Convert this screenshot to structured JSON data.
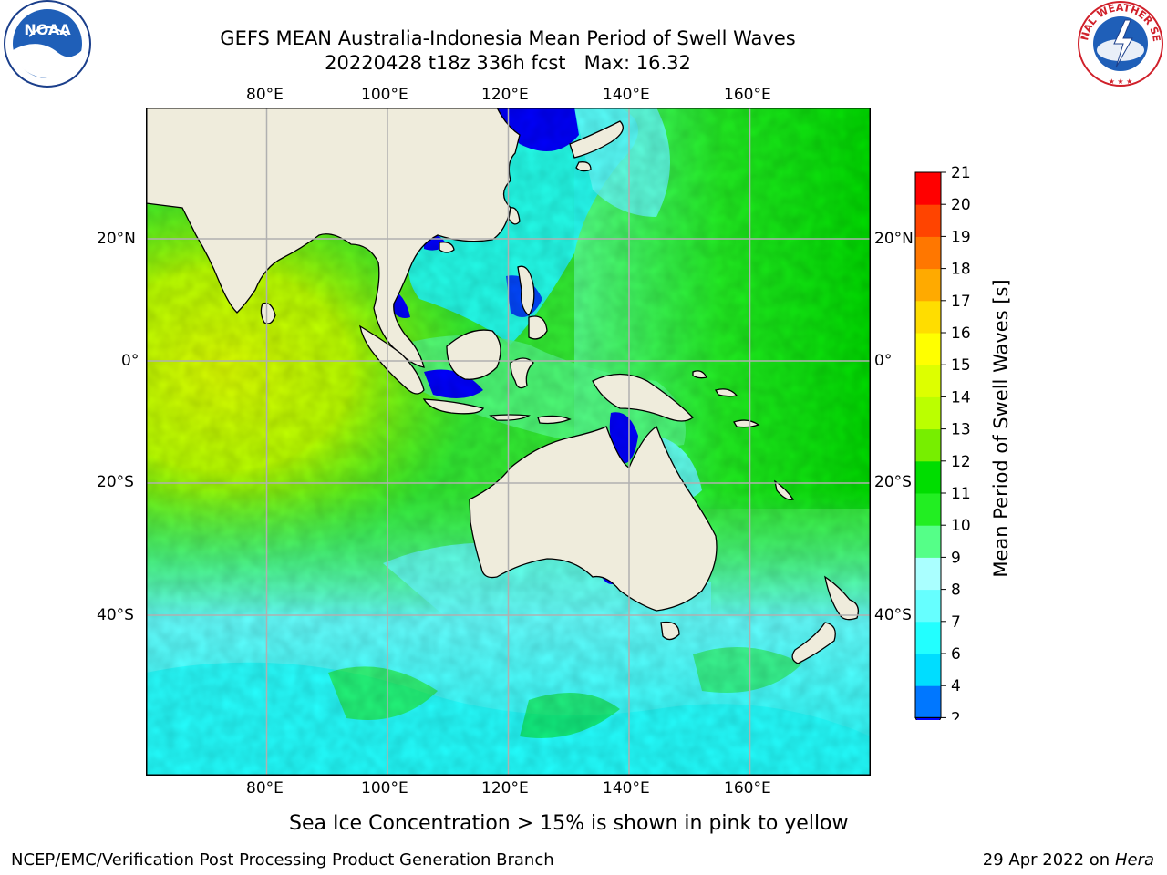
{
  "header": {
    "title_line1": "GEFS MEAN Australia-Indonesia Mean Period of Swell Waves",
    "title_line2": "20220428 t18z 336h fcst   Max: 16.32"
  },
  "logos": {
    "noaa": {
      "name": "noaa-logo",
      "text": "NOAA",
      "ring_text": "NATIONAL OCEANIC AND ATMOSPHERIC ADMINISTRATION · U.S. DEPARTMENT OF COMMERCE"
    },
    "nws": {
      "name": "nws-logo",
      "ring_text": "NATIONAL WEATHER SERVICE"
    }
  },
  "map": {
    "lon_labels": [
      "80°E",
      "100°E",
      "120°E",
      "140°E",
      "160°E"
    ],
    "lat_labels": [
      "20°N",
      "0°",
      "20°S",
      "40°S"
    ],
    "lon_range": [
      60,
      180
    ],
    "lat_range": [
      -68,
      40
    ],
    "colors": {
      "land": "#efecdc",
      "grid": "#b0b0b0",
      "ocean_default": "#33ee33"
    }
  },
  "colorbar": {
    "title": "Mean Period of Swell Waves [s]",
    "ticks": [
      "2",
      "4",
      "6",
      "7",
      "8",
      "9",
      "10",
      "11",
      "12",
      "13",
      "14",
      "15",
      "16",
      "17",
      "18",
      "19",
      "20",
      "21"
    ],
    "colors": [
      "#0077ff",
      "#00ddff",
      "#22ffff",
      "#66ffff",
      "#aaffff",
      "#55ff88",
      "#22ee22",
      "#00dd00",
      "#77ee00",
      "#bbff00",
      "#ddff00",
      "#ffff00",
      "#ffdd00",
      "#ffaa00",
      "#ff7700",
      "#ff4400",
      "#ff0000"
    ],
    "extend_color": "#0000ff",
    "extend": "min"
  },
  "note": "Sea Ice Concentration > 15% is shown in pink to yellow",
  "footer": {
    "left": "NCEP/EMC/Verification Post Processing Product Generation Branch",
    "right_prefix": "29 Apr 2022 on ",
    "right_host": "Hera"
  }
}
